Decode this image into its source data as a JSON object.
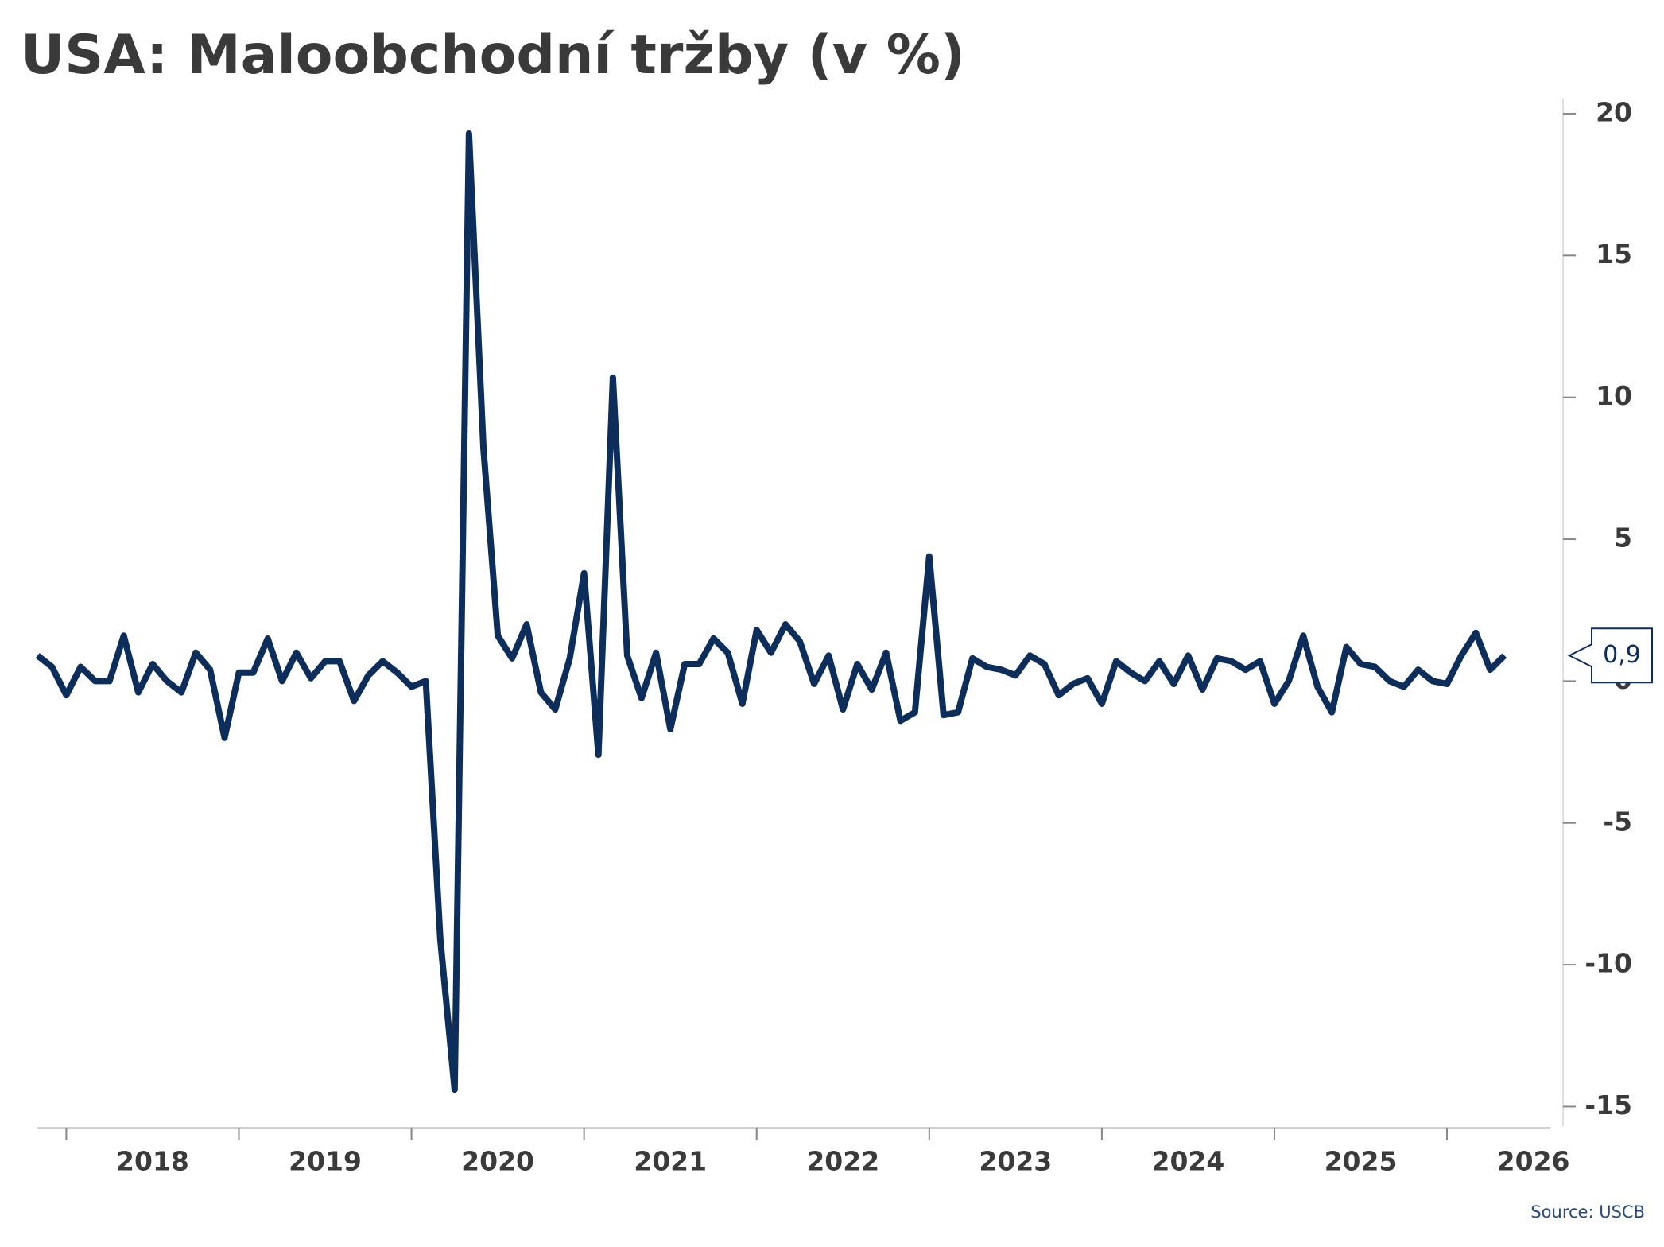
{
  "chart_data": {
    "type": "line",
    "title": "USA: Maloobchodní tržby (v %)",
    "source": "Source: USCB",
    "x": [
      2017.833,
      2017.917,
      2018.0,
      2018.083,
      2018.167,
      2018.25,
      2018.333,
      2018.417,
      2018.5,
      2018.583,
      2018.667,
      2018.75,
      2018.833,
      2018.917,
      2019.0,
      2019.083,
      2019.167,
      2019.25,
      2019.333,
      2019.417,
      2019.5,
      2019.583,
      2019.667,
      2019.75,
      2019.833,
      2019.917,
      2020.0,
      2020.083,
      2020.167,
      2020.25,
      2020.333,
      2020.417,
      2020.5,
      2020.583,
      2020.667,
      2020.75,
      2020.833,
      2020.917,
      2021.0,
      2021.083,
      2021.167,
      2021.25,
      2021.333,
      2021.417,
      2021.5,
      2021.583,
      2021.667,
      2021.75,
      2021.833,
      2021.917,
      2022.0,
      2022.083,
      2022.167,
      2022.25,
      2022.333,
      2022.417,
      2022.5,
      2022.583,
      2022.667,
      2022.75,
      2022.833,
      2022.917,
      2023.0,
      2023.083,
      2023.167,
      2023.25,
      2023.333,
      2023.417,
      2023.5,
      2023.583,
      2023.667,
      2023.75,
      2023.833,
      2023.917,
      2024.0,
      2024.083,
      2024.167,
      2024.25,
      2024.333,
      2024.417,
      2024.5,
      2024.583,
      2024.667,
      2024.75,
      2024.833,
      2024.917,
      2025.0,
      2025.083,
      2025.167,
      2025.25,
      2025.333,
      2025.417,
      2025.5,
      2025.583,
      2025.667,
      2025.75,
      2025.833,
      2025.917,
      2026.0,
      2026.083,
      2026.167,
      2026.25,
      2026.333
    ],
    "series": [
      {
        "color": "#0d2d5a",
        "values": [
          0.9,
          0.5,
          -0.5,
          0.5,
          0.0,
          0.0,
          1.6,
          -0.4,
          0.6,
          0.0,
          -0.4,
          1.0,
          0.4,
          -2.0,
          0.3,
          0.3,
          1.5,
          0.0,
          1.0,
          0.1,
          0.7,
          0.7,
          -0.7,
          0.2,
          0.7,
          0.3,
          -0.2,
          0.0,
          -9.1,
          -14.4,
          19.3,
          8.2,
          1.6,
          0.8,
          2.0,
          -0.4,
          -1.0,
          0.8,
          3.8,
          -2.6,
          10.7,
          0.9,
          -0.6,
          1.0,
          -1.7,
          0.6,
          0.6,
          1.5,
          1.0,
          -0.8,
          1.8,
          1.0,
          2.0,
          1.4,
          -0.1,
          0.9,
          -1.0,
          0.6,
          -0.3,
          1.0,
          -1.4,
          -1.1,
          4.4,
          -1.2,
          -1.1,
          0.8,
          0.5,
          0.4,
          0.2,
          0.9,
          0.6,
          -0.5,
          -0.1,
          0.1,
          -0.8,
          0.7,
          0.3,
          0.0,
          0.7,
          -0.1,
          0.9,
          -0.3,
          0.8,
          0.7,
          0.4,
          0.7,
          -0.8,
          0.0,
          1.6,
          -0.2,
          -1.1,
          1.2,
          0.6,
          0.5,
          0.0,
          -0.2,
          0.4,
          0.0,
          -0.1,
          0.9,
          1.7,
          0.4,
          0.9
        ],
        "value_labels": [
          null,
          null,
          null,
          null,
          null,
          null,
          null,
          null,
          null,
          null,
          null,
          null,
          null,
          null,
          null,
          null,
          null,
          null,
          null,
          null,
          null,
          null,
          null,
          null,
          null,
          null,
          null,
          null,
          null,
          null,
          null,
          null,
          null,
          null,
          null,
          null,
          null,
          null,
          null,
          null,
          null,
          null,
          null,
          null,
          null,
          null,
          null,
          null,
          null,
          null,
          null,
          null,
          null,
          null,
          null,
          null,
          null,
          null,
          null,
          null,
          null,
          null,
          null,
          null,
          null,
          null,
          null,
          null,
          null,
          null,
          null,
          null,
          null,
          null,
          null,
          null,
          null,
          null,
          null,
          null,
          null,
          null,
          null,
          null,
          null,
          null,
          null,
          null,
          null,
          null,
          null,
          null,
          null,
          null,
          null,
          null,
          null,
          null,
          null,
          null,
          null,
          null,
          "0,9"
        ]
      }
    ],
    "xlim": [
      2017.8,
      2026.7
    ],
    "xticks": [
      2018,
      2019,
      2020,
      2021,
      2022,
      2023,
      2024,
      2025,
      2026
    ],
    "ylim": [
      -15.8,
      20.7
    ],
    "yticks": [
      -15,
      -10,
      -5,
      0,
      5,
      10,
      15,
      20
    ],
    "y_axis_side": "right"
  }
}
